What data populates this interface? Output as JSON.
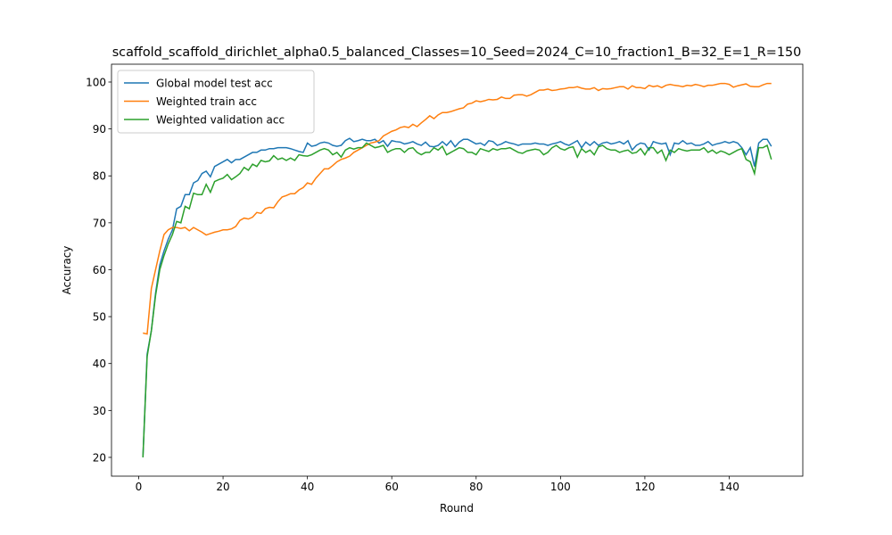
{
  "chart_data": {
    "type": "line",
    "title": "scaffold_scaffold_dirichlet_alpha0.5_balanced_Classes=10_Seed=2024_C=10_fraction1_B=32_E=1_R=150",
    "x_label": "Round",
    "y_label": "Accuracy",
    "legend": "upper left",
    "xlim": [
      -6.45,
      157.45
    ],
    "ylim": [
      16.0,
      103.8
    ],
    "xticks": [
      0,
      20,
      40,
      60,
      80,
      100,
      120,
      140
    ],
    "yticks": [
      20,
      30,
      40,
      50,
      60,
      70,
      80,
      90,
      100
    ],
    "x": [
      1,
      2,
      3,
      4,
      5,
      6,
      7,
      8,
      9,
      10,
      11,
      12,
      13,
      14,
      15,
      16,
      17,
      18,
      19,
      20,
      21,
      22,
      23,
      24,
      25,
      26,
      27,
      28,
      29,
      30,
      31,
      32,
      33,
      34,
      35,
      36,
      37,
      38,
      39,
      40,
      41,
      42,
      43,
      44,
      45,
      46,
      47,
      48,
      49,
      50,
      51,
      52,
      53,
      54,
      55,
      56,
      57,
      58,
      59,
      60,
      61,
      62,
      63,
      64,
      65,
      66,
      67,
      68,
      69,
      70,
      71,
      72,
      73,
      74,
      75,
      76,
      77,
      78,
      79,
      80,
      81,
      82,
      83,
      84,
      85,
      86,
      87,
      88,
      89,
      90,
      91,
      92,
      93,
      94,
      95,
      96,
      97,
      98,
      99,
      100,
      101,
      102,
      103,
      104,
      105,
      106,
      107,
      108,
      109,
      110,
      111,
      112,
      113,
      114,
      115,
      116,
      117,
      118,
      119,
      120,
      121,
      122,
      123,
      124,
      125,
      126,
      127,
      128,
      129,
      130,
      131,
      132,
      133,
      134,
      135,
      136,
      137,
      138,
      139,
      140,
      141,
      142,
      143,
      144,
      145,
      146,
      147,
      148,
      149,
      150
    ],
    "series": [
      {
        "name": "Global model test acc",
        "color": "#1f77b4",
        "values": [
          20,
          42,
          47,
          55,
          61,
          64,
          66.5,
          68.5,
          73,
          73.5,
          76,
          76,
          78.5,
          79,
          80.5,
          81,
          79.8,
          82,
          82.5,
          83,
          83.5,
          82.8,
          83.5,
          83.5,
          84,
          84.5,
          85,
          85,
          85.5,
          85.5,
          85.8,
          85.8,
          86,
          86,
          86,
          85.8,
          85.5,
          85.2,
          85,
          87,
          86.3,
          86.5,
          87,
          87.2,
          87,
          86.5,
          86.3,
          86.5,
          87.5,
          88,
          87.3,
          87.5,
          87.8,
          87.5,
          87.5,
          87.8,
          87,
          87.5,
          86.3,
          87.5,
          87.3,
          87.2,
          86.8,
          87,
          87.3,
          86.8,
          86.5,
          87.2,
          86.3,
          86.2,
          86.5,
          87.3,
          86.5,
          87.5,
          86.2,
          87.2,
          87.8,
          87.8,
          87.3,
          86.8,
          87,
          86.5,
          87.5,
          87.3,
          86.5,
          86.8,
          87.3,
          87,
          86.8,
          86.5,
          86.8,
          86.8,
          86.8,
          87,
          86.8,
          86.8,
          86.5,
          86.8,
          87,
          87.3,
          86.8,
          86.5,
          87,
          87.5,
          86,
          87.2,
          86.5,
          87.3,
          86.5,
          87,
          87.2,
          86.8,
          87,
          87.3,
          86.8,
          87.5,
          85.5,
          86.5,
          87,
          86.8,
          85.5,
          87.3,
          87,
          86.8,
          87,
          84.5,
          87,
          86.8,
          87.5,
          86.8,
          87,
          86.5,
          86.5,
          86.8,
          87.3,
          86.5,
          86.8,
          87,
          87.3,
          87,
          87.3,
          87,
          86,
          84.5,
          86,
          82,
          87,
          87.8,
          87.8,
          86.3
        ]
      },
      {
        "name": "Weighted train acc",
        "color": "#ff7f0e",
        "values": [
          46.5,
          46.3,
          56,
          60,
          64,
          67.5,
          68.5,
          69,
          69,
          68.8,
          69,
          68.3,
          69,
          68.5,
          68,
          67.4,
          67.7,
          68,
          68.2,
          68.5,
          68.5,
          68.7,
          69.2,
          70.5,
          71,
          70.8,
          71.2,
          72.2,
          72,
          73,
          73.3,
          73.2,
          74.5,
          75.5,
          75.8,
          76.2,
          76.2,
          77,
          77.5,
          78.5,
          78.2,
          79.5,
          80.5,
          81.5,
          81.5,
          82.2,
          83,
          83.5,
          83.8,
          84.2,
          85,
          85.5,
          86,
          86.5,
          87,
          87.2,
          87.5,
          88.5,
          89,
          89.5,
          89.8,
          90.3,
          90.5,
          90.3,
          91,
          90.5,
          91.3,
          92,
          92.8,
          92.2,
          93,
          93.5,
          93.5,
          93.7,
          94,
          94.3,
          94.5,
          95.3,
          95.5,
          96,
          95.8,
          96,
          96.3,
          96.2,
          96.3,
          96.8,
          96.5,
          96.5,
          97.2,
          97.3,
          97.3,
          97,
          97.3,
          97.8,
          98.3,
          98.3,
          98.5,
          98.2,
          98.3,
          98.5,
          98.6,
          98.8,
          98.8,
          99,
          98.7,
          98.5,
          98.5,
          98.8,
          98.2,
          98.6,
          98.5,
          98.6,
          98.8,
          99,
          99,
          98.5,
          99.2,
          98.8,
          98.8,
          98.6,
          99.3,
          99,
          99.2,
          98.8,
          99.3,
          99.5,
          99.3,
          99.2,
          99,
          99.3,
          99.2,
          99.5,
          99.3,
          99,
          99.3,
          99.3,
          99.5,
          99.7,
          99.7,
          99.5,
          98.9,
          99.2,
          99.4,
          99.6,
          99.1,
          99,
          99,
          99.4,
          99.7,
          99.7
        ]
      },
      {
        "name": "Weighted validation acc",
        "color": "#2ca02c",
        "values": [
          20,
          41.5,
          47,
          54.5,
          60,
          63,
          65.5,
          67.5,
          70.3,
          70,
          73.5,
          73,
          76.3,
          76,
          76,
          78.2,
          76.5,
          78.8,
          79.2,
          79.5,
          80.3,
          79.2,
          79.8,
          80.5,
          81.8,
          81.2,
          82.5,
          82,
          83.3,
          83,
          83.2,
          84.3,
          83.5,
          83.8,
          83.3,
          83.8,
          83.3,
          84.5,
          84.3,
          84.2,
          84.5,
          85,
          85.5,
          85.8,
          85.5,
          84.5,
          85,
          84,
          85.5,
          86,
          85.7,
          86,
          86,
          87,
          86.5,
          86,
          86.2,
          86.5,
          85,
          85.5,
          85.8,
          85.8,
          85,
          85.8,
          86,
          85,
          84.5,
          85,
          85,
          86,
          85.5,
          86.3,
          84.5,
          85,
          85.5,
          86,
          85.8,
          85,
          85,
          84.5,
          85.8,
          85.5,
          85.2,
          85.8,
          85.5,
          85.8,
          85.8,
          86,
          85.5,
          85,
          84.8,
          85.3,
          85.5,
          85.7,
          85.5,
          84.5,
          85,
          86,
          86.5,
          85.8,
          85.5,
          86,
          86.2,
          84,
          85.8,
          85,
          85.5,
          84.5,
          86.2,
          86.5,
          85.8,
          85.5,
          85.5,
          85,
          85.3,
          85.5,
          84.8,
          85,
          85.8,
          84.5,
          86,
          86,
          84.8,
          85.5,
          83.3,
          85.5,
          85,
          85.8,
          85.5,
          85.3,
          85.5,
          85.5,
          85.5,
          86,
          85,
          85.5,
          84.8,
          85.3,
          85,
          84.5,
          85,
          85.5,
          85.8,
          83.5,
          83,
          80.5,
          86,
          86,
          86.5,
          83.5
        ]
      }
    ]
  }
}
